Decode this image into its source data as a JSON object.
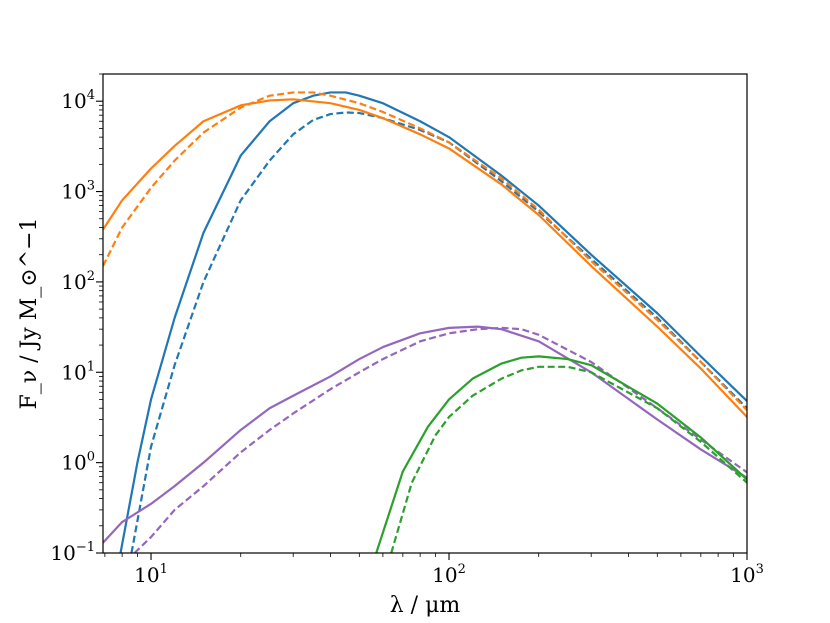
{
  "chart_data": {
    "type": "line",
    "title": "",
    "xlabel": "λ / μm",
    "ylabel": "F_ν / Jy M_⊙^−1",
    "x_scale": "log",
    "y_scale": "log",
    "xlim": [
      6.9,
      1000
    ],
    "ylim": [
      0.1,
      20000
    ],
    "grid": false,
    "legend": "none",
    "x_ticks": [
      {
        "value": 10,
        "base": "10",
        "exp": "1"
      },
      {
        "value": 100,
        "base": "10",
        "exp": "2"
      },
      {
        "value": 1000,
        "base": "10",
        "exp": "3"
      }
    ],
    "y_ticks": [
      {
        "value": 0.1,
        "base": "10",
        "exp": "−1"
      },
      {
        "value": 1,
        "base": "10",
        "exp": "0"
      },
      {
        "value": 10,
        "base": "10",
        "exp": "1"
      },
      {
        "value": 100,
        "base": "10",
        "exp": "2"
      },
      {
        "value": 1000,
        "base": "10",
        "exp": "3"
      },
      {
        "value": 10000,
        "base": "10",
        "exp": "4"
      }
    ],
    "series": [
      {
        "color": "#1f77b4",
        "style": "solid",
        "x": [
          7.9,
          9,
          10,
          12,
          15,
          20,
          25,
          30,
          35,
          40,
          45,
          50,
          60,
          80,
          100,
          150,
          200,
          300,
          500,
          700,
          1000
        ],
        "y": [
          0.1,
          1.0,
          5,
          40,
          350,
          2500,
          6000,
          9500,
          11500,
          12500,
          12500,
          11500,
          9500,
          6000,
          4000,
          1500,
          700,
          200,
          45,
          15,
          4.8
        ]
      },
      {
        "color": "#1f77b4",
        "style": "dashed",
        "x": [
          8.6,
          10,
          12,
          15,
          20,
          25,
          30,
          35,
          40,
          45,
          50,
          60,
          80,
          100,
          150,
          200,
          300,
          500,
          700,
          1000
        ],
        "y": [
          0.1,
          1.5,
          12,
          100,
          800,
          2200,
          4300,
          6200,
          7200,
          7500,
          7400,
          6500,
          4800,
          3500,
          1300,
          600,
          180,
          40,
          13,
          4.0
        ]
      },
      {
        "color": "#ff7f0e",
        "style": "solid",
        "x": [
          6.9,
          8,
          10,
          12,
          15,
          20,
          25,
          30,
          40,
          50,
          60,
          80,
          100,
          150,
          200,
          300,
          500,
          700,
          1000
        ],
        "y": [
          380,
          800,
          1800,
          3200,
          6000,
          9000,
          10200,
          10500,
          9500,
          8000,
          6500,
          4300,
          3000,
          1200,
          550,
          150,
          32,
          11,
          3.2
        ]
      },
      {
        "color": "#ff7f0e",
        "style": "dashed",
        "x": [
          6.9,
          8,
          10,
          12,
          15,
          20,
          25,
          30,
          35,
          40,
          50,
          60,
          80,
          100,
          150,
          200,
          300,
          500,
          700,
          1000
        ],
        "y": [
          150,
          400,
          1100,
          2200,
          4500,
          8500,
          11500,
          12500,
          12500,
          11500,
          9500,
          7600,
          5000,
          3500,
          1400,
          630,
          170,
          38,
          13,
          3.8
        ]
      },
      {
        "color": "#9467bd",
        "style": "solid",
        "x": [
          6.9,
          8,
          10,
          12,
          15,
          20,
          25,
          30,
          40,
          50,
          60,
          80,
          100,
          125,
          150,
          200,
          300,
          500,
          700,
          1000
        ],
        "y": [
          0.13,
          0.22,
          0.35,
          0.55,
          1.0,
          2.3,
          4.0,
          5.5,
          9,
          14,
          19,
          27,
          31,
          32,
          30,
          22,
          10,
          3.0,
          1.4,
          0.68
        ]
      },
      {
        "color": "#9467bd",
        "style": "dashed",
        "x": [
          8.8,
          10,
          12,
          15,
          20,
          25,
          30,
          40,
          50,
          60,
          80,
          100,
          125,
          150,
          175,
          200,
          300,
          500,
          700,
          1000
        ],
        "y": [
          0.1,
          0.15,
          0.3,
          0.55,
          1.3,
          2.3,
          3.5,
          6.5,
          10,
          14,
          22,
          27,
          30,
          31,
          30,
          26,
          13,
          4,
          1.8,
          0.78
        ]
      },
      {
        "color": "#2ca02c",
        "style": "solid",
        "x": [
          57,
          70,
          85,
          100,
          120,
          150,
          175,
          200,
          250,
          300,
          500,
          700,
          1000
        ],
        "y": [
          0.1,
          0.8,
          2.5,
          5,
          8.5,
          12.5,
          14.5,
          15,
          14,
          12,
          4.5,
          1.9,
          0.65
        ]
      },
      {
        "color": "#2ca02c",
        "style": "dashed",
        "x": [
          64,
          75,
          90,
          100,
          120,
          150,
          175,
          200,
          250,
          300,
          500,
          700,
          1000
        ],
        "y": [
          0.1,
          0.6,
          2.0,
          3.2,
          5.5,
          8.5,
          10.5,
          11.5,
          11.5,
          10,
          4.0,
          1.7,
          0.6
        ]
      }
    ]
  }
}
